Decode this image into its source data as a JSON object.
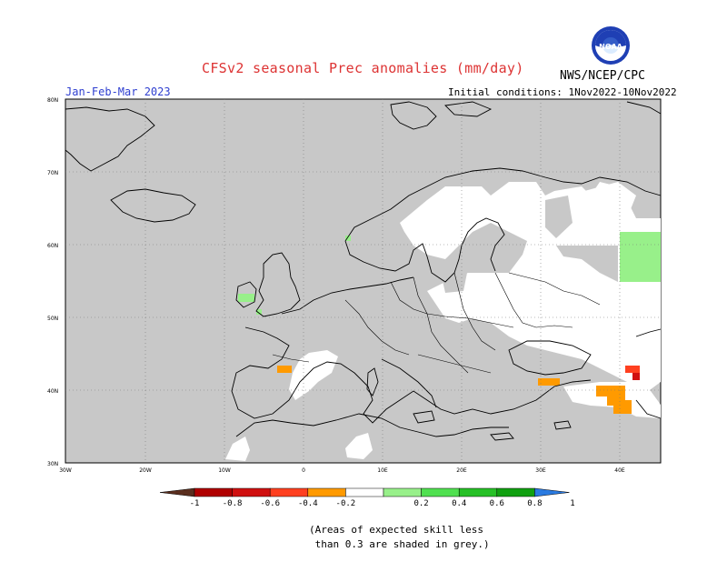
{
  "title": "CFSv2 seasonal Prec anomalies (mm/day)",
  "season": "Jan-Feb-Mar 2023",
  "initial_conditions": "Initial conditions: 1Nov2022-10Nov2022",
  "org": "NWS/NCEP/CPC",
  "logo_text": "NOAA",
  "lat_labels": [
    "80N",
    "70N",
    "60N",
    "50N",
    "40N",
    "30N"
  ],
  "lon_labels": [
    "30W",
    "20W",
    "10W",
    "0",
    "10E",
    "20E",
    "30E",
    "40E"
  ],
  "colorbar": {
    "labels": [
      "-1",
      "-0.8",
      "-0.6",
      "-0.4",
      "-0.2",
      "0.2",
      "0.4",
      "0.6",
      "0.8",
      "1"
    ],
    "colors": [
      "#5a2e1e",
      "#b00000",
      "#d01010",
      "#ff4020",
      "#ff9a00",
      "#ffffff",
      "#98f08a",
      "#50e050",
      "#26c026",
      "#10a010",
      "#2a7ae0"
    ]
  },
  "note_line1": "(Areas of expected skill less",
  "note_line2": " than 0.3 are shaded in grey.)"
}
